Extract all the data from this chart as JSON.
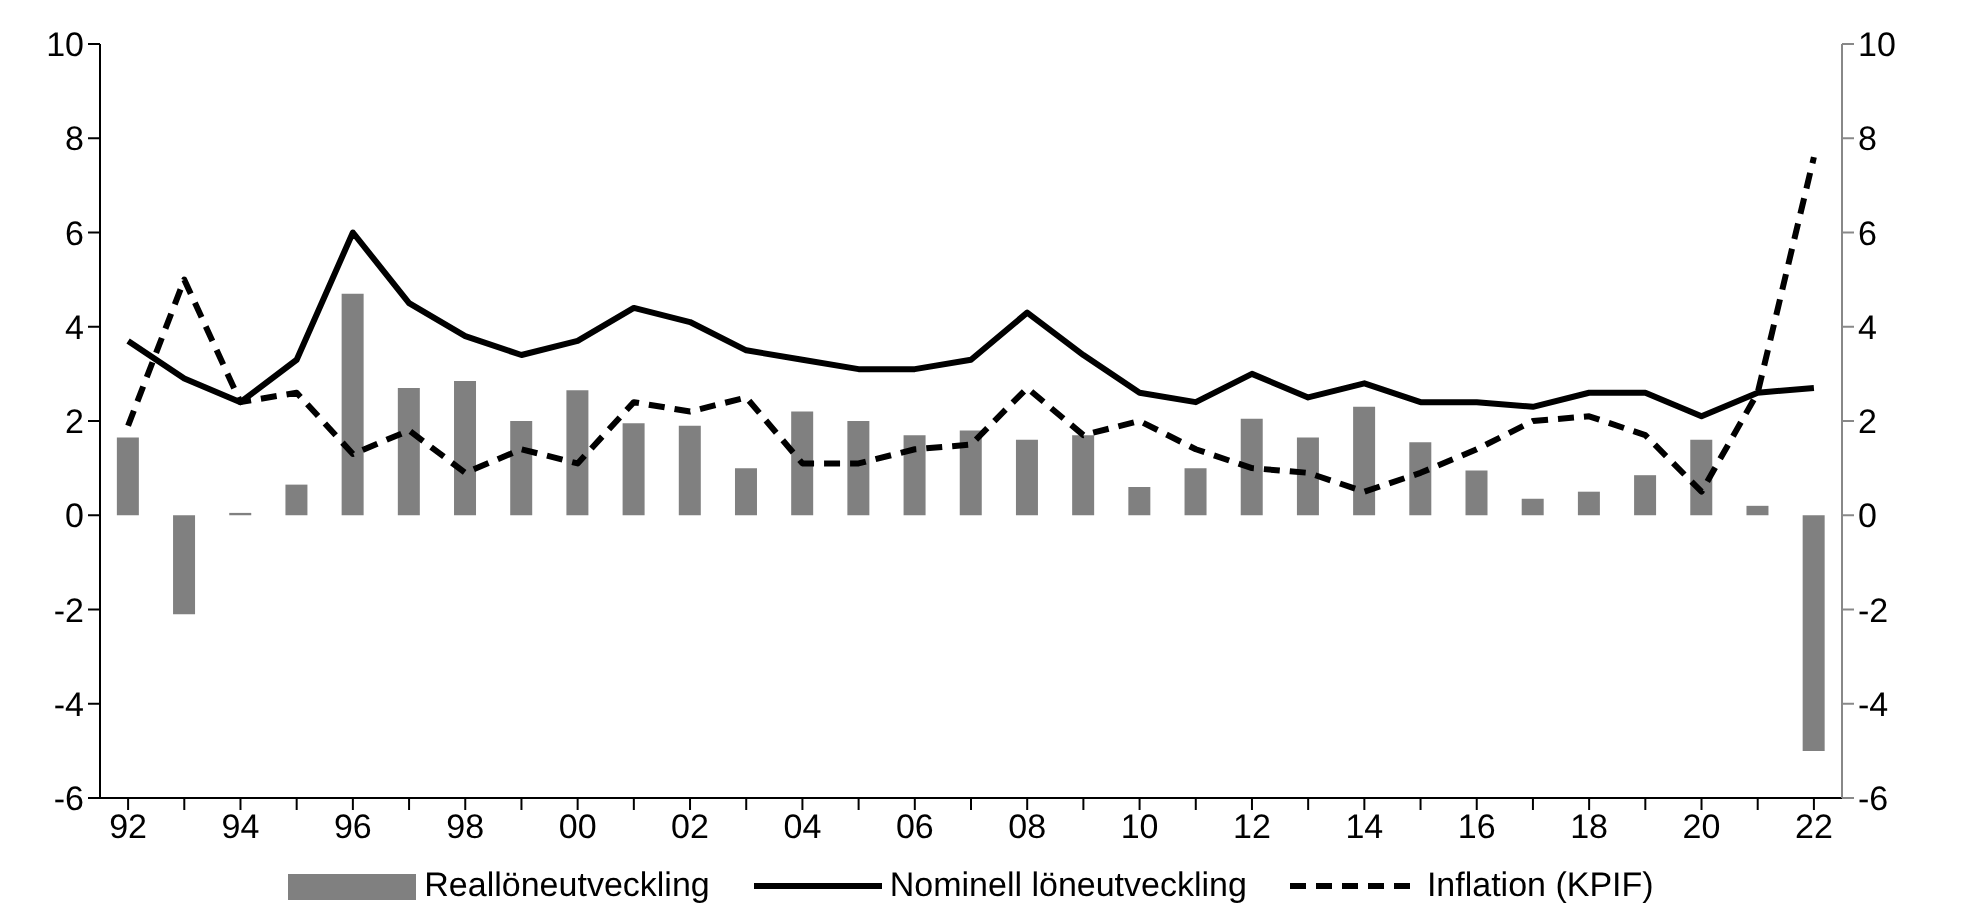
{
  "chart_data": {
    "type": "bar",
    "categories": [
      "92",
      null,
      "94",
      null,
      "96",
      null,
      "98",
      null,
      "00",
      null,
      "02",
      null,
      "04",
      null,
      "06",
      null,
      "08",
      null,
      "10",
      null,
      "12",
      null,
      "14",
      null,
      "16",
      null,
      "18",
      null,
      "20",
      null,
      "22"
    ],
    "series": [
      {
        "name": "Reallöneutveckling",
        "color": "#808080",
        "values": [
          1.65,
          -2.1,
          0.05,
          0.65,
          4.7,
          2.7,
          2.85,
          2.0,
          2.65,
          1.95,
          1.9,
          1.0,
          2.2,
          2.0,
          1.7,
          1.8,
          1.6,
          1.7,
          0.6,
          1.0,
          2.05,
          1.65,
          2.3,
          1.55,
          0.95,
          0.35,
          0.5,
          0.85,
          1.6,
          0.2,
          -5.0
        ]
      },
      {
        "name": "Nominell löneutveckling",
        "type": "line",
        "color": "#000000",
        "line_style": "solid",
        "values": [
          3.7,
          2.9,
          2.4,
          3.3,
          6.0,
          4.5,
          3.8,
          3.4,
          3.7,
          4.4,
          4.1,
          3.5,
          3.3,
          3.1,
          3.1,
          3.3,
          4.3,
          3.4,
          2.6,
          2.4,
          3.0,
          2.5,
          2.8,
          2.4,
          2.4,
          2.3,
          2.6,
          2.6,
          2.1,
          2.6,
          2.7
        ]
      },
      {
        "name": "Inflation (KPIF)",
        "type": "line",
        "color": "#000000",
        "line_style": "dashed",
        "values": [
          1.9,
          5.0,
          2.4,
          2.6,
          1.3,
          1.8,
          0.9,
          1.4,
          1.1,
          2.4,
          2.2,
          2.5,
          1.1,
          1.1,
          1.4,
          1.5,
          2.7,
          1.7,
          2.0,
          1.4,
          1.0,
          0.9,
          0.5,
          0.9,
          1.4,
          2.0,
          2.1,
          1.7,
          0.5,
          2.6,
          7.6
        ]
      }
    ],
    "ylim": [
      -6,
      10
    ],
    "yticks": [
      -6,
      -4,
      -2,
      0,
      2,
      4,
      6,
      8,
      10
    ],
    "y2lim": [
      -6,
      10
    ],
    "y2ticks": [
      -6,
      -4,
      -2,
      0,
      2,
      4,
      6,
      8,
      10
    ],
    "grid": false,
    "legend": "bottom",
    "marker": "none"
  }
}
